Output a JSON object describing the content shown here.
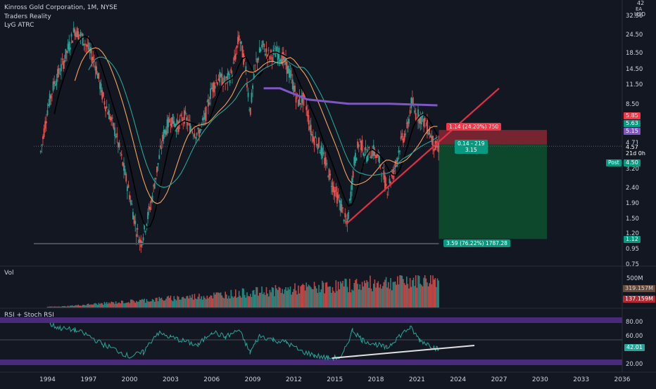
{
  "header": {
    "title": "Kinross Gold Corporation, 1M, NYSE",
    "line2": "Traders Reality",
    "line3": "LyG ATRC"
  },
  "currency": {
    "top": "42",
    "line1": "ЕА",
    "line2": "USD"
  },
  "price_axis": {
    "ticks": [
      {
        "label": "32.50",
        "value": 32.5
      },
      {
        "label": "24.50",
        "value": 24.5
      },
      {
        "label": "18.50",
        "value": 18.5
      },
      {
        "label": "14.50",
        "value": 14.5
      },
      {
        "label": "11.50",
        "value": 11.5
      },
      {
        "label": "8.50",
        "value": 8.5
      },
      {
        "label": "4.71",
        "value": 4.71
      },
      {
        "label": "3.20",
        "value": 3.2
      },
      {
        "label": "2.40",
        "value": 2.4
      },
      {
        "label": "1.90",
        "value": 1.9
      },
      {
        "label": "1.50",
        "value": 1.5
      },
      {
        "label": "1.20",
        "value": 1.2
      },
      {
        "label": "0.95",
        "value": 0.95
      },
      {
        "label": "0.75",
        "value": 0.75
      }
    ],
    "badges": [
      {
        "label": "5.85",
        "color": "#f23645"
      },
      {
        "label": "5.63",
        "color": "#089981"
      },
      {
        "label": "5.15",
        "color": "#7e57c2"
      },
      {
        "label": "4.57",
        "color": "#131722",
        "sub": "21d 0h"
      },
      {
        "label": "4.50",
        "color": "#089981"
      },
      {
        "label": "1.12",
        "color": "#089981"
      }
    ],
    "post_label": "Post"
  },
  "trade": {
    "target_label": "1.14 (24.20%) 750",
    "entry_label_1": "0.14 - 219",
    "entry_label_2": "3.15",
    "stop_label": "3.59 (76.22%) 1787.28"
  },
  "volume_panel": {
    "title": "Vol",
    "axis": "500M",
    "badge1": "319.157M",
    "badge2": "137.159M"
  },
  "rsi_panel": {
    "title": "RSI + Stoch RSI",
    "ticks": [
      {
        "label": "80.00",
        "value": 80
      },
      {
        "label": "60.00",
        "value": 60
      },
      {
        "label": "20.00",
        "value": 20
      }
    ],
    "badge": "42.01"
  },
  "x_axis": {
    "ticks": [
      "1994",
      "1997",
      "2000",
      "2003",
      "2006",
      "2009",
      "2012",
      "2015",
      "2018",
      "2021",
      "2024",
      "2027",
      "2030",
      "2033",
      "2036"
    ]
  },
  "chart_data": {
    "type": "line",
    "title": "Kinross Gold Corporation, 1M, NYSE",
    "x_start": 1993,
    "x_end": 2036,
    "y_scale": "log",
    "ylim": [
      0.75,
      42
    ],
    "price_series": [
      {
        "x": 1993.5,
        "y": 4.2
      },
      {
        "x": 1994.0,
        "y": 8.0
      },
      {
        "x": 1994.5,
        "y": 12.0
      },
      {
        "x": 1995.0,
        "y": 15.0
      },
      {
        "x": 1995.5,
        "y": 20.0
      },
      {
        "x": 1996.0,
        "y": 27.0
      },
      {
        "x": 1996.5,
        "y": 24.0
      },
      {
        "x": 1997.0,
        "y": 20.0
      },
      {
        "x": 1997.5,
        "y": 16.0
      },
      {
        "x": 1998.0,
        "y": 10.0
      },
      {
        "x": 1998.5,
        "y": 7.5
      },
      {
        "x": 1999.0,
        "y": 5.5
      },
      {
        "x": 1999.5,
        "y": 3.5
      },
      {
        "x": 2000.0,
        "y": 2.2
      },
      {
        "x": 2000.5,
        "y": 1.3
      },
      {
        "x": 2000.8,
        "y": 1.05
      },
      {
        "x": 2001.2,
        "y": 1.4
      },
      {
        "x": 2001.6,
        "y": 2.0
      },
      {
        "x": 2002.0,
        "y": 3.2
      },
      {
        "x": 2002.5,
        "y": 5.5
      },
      {
        "x": 2003.0,
        "y": 7.0
      },
      {
        "x": 2003.5,
        "y": 6.2
      },
      {
        "x": 2004.0,
        "y": 7.2
      },
      {
        "x": 2004.5,
        "y": 6.0
      },
      {
        "x": 2005.0,
        "y": 5.5
      },
      {
        "x": 2005.5,
        "y": 7.0
      },
      {
        "x": 2006.0,
        "y": 11.0
      },
      {
        "x": 2006.5,
        "y": 13.0
      },
      {
        "x": 2007.0,
        "y": 12.0
      },
      {
        "x": 2007.5,
        "y": 14.0
      },
      {
        "x": 2008.0,
        "y": 24.0
      },
      {
        "x": 2008.5,
        "y": 15.0
      },
      {
        "x": 2008.8,
        "y": 7.5
      },
      {
        "x": 2009.2,
        "y": 16.0
      },
      {
        "x": 2009.7,
        "y": 21.0
      },
      {
        "x": 2010.2,
        "y": 18.0
      },
      {
        "x": 2010.8,
        "y": 19.0
      },
      {
        "x": 2011.3,
        "y": 17.0
      },
      {
        "x": 2011.8,
        "y": 13.0
      },
      {
        "x": 2012.3,
        "y": 9.0
      },
      {
        "x": 2012.8,
        "y": 9.5
      },
      {
        "x": 2013.3,
        "y": 5.5
      },
      {
        "x": 2013.8,
        "y": 4.8
      },
      {
        "x": 2014.3,
        "y": 3.6
      },
      {
        "x": 2014.8,
        "y": 2.6
      },
      {
        "x": 2015.5,
        "y": 1.8
      },
      {
        "x": 2015.9,
        "y": 1.35
      },
      {
        "x": 2016.4,
        "y": 3.5
      },
      {
        "x": 2016.8,
        "y": 5.0
      },
      {
        "x": 2017.3,
        "y": 4.0
      },
      {
        "x": 2017.8,
        "y": 4.3
      },
      {
        "x": 2018.3,
        "y": 3.6
      },
      {
        "x": 2018.8,
        "y": 2.4
      },
      {
        "x": 2019.3,
        "y": 3.1
      },
      {
        "x": 2019.8,
        "y": 4.8
      },
      {
        "x": 2020.3,
        "y": 6.0
      },
      {
        "x": 2020.6,
        "y": 9.0
      },
      {
        "x": 2020.9,
        "y": 7.5
      },
      {
        "x": 2021.4,
        "y": 7.0
      },
      {
        "x": 2021.9,
        "y": 5.8
      },
      {
        "x": 2022.3,
        "y": 4.5
      },
      {
        "x": 2022.6,
        "y": 4.5
      }
    ],
    "purple_line": [
      {
        "x": 2009.8,
        "y": 11.0
      },
      {
        "x": 2011.0,
        "y": 11.0
      },
      {
        "x": 2013.0,
        "y": 9.3
      },
      {
        "x": 2016.0,
        "y": 8.7
      },
      {
        "x": 2019.0,
        "y": 8.7
      },
      {
        "x": 2022.5,
        "y": 8.5
      }
    ],
    "trend_line": {
      "x1": 2015.8,
      "y1": 1.4,
      "x2": 2027.0,
      "y2": 11.0
    },
    "position": {
      "x1": 2022.6,
      "x2": 2030.5,
      "entry": 4.71,
      "target": 5.85,
      "stop": 1.12
    },
    "volume": {
      "x_start": 1994.0,
      "x_end": 2022.6,
      "peak": 500
    },
    "rsi": {
      "ylim": [
        10,
        100
      ],
      "band_upper": [
        80,
        88
      ],
      "band_lower": [
        20,
        28
      ],
      "mid": 56,
      "values": [
        {
          "x": 1994.2,
          "y": 78
        },
        {
          "x": 1995.0,
          "y": 72
        },
        {
          "x": 1996.0,
          "y": 70
        },
        {
          "x": 1997.0,
          "y": 62
        },
        {
          "x": 1998.0,
          "y": 50
        },
        {
          "x": 1999.0,
          "y": 42
        },
        {
          "x": 2000.0,
          "y": 32
        },
        {
          "x": 2001.0,
          "y": 38
        },
        {
          "x": 2002.0,
          "y": 66
        },
        {
          "x": 2003.0,
          "y": 60
        },
        {
          "x": 2004.0,
          "y": 54
        },
        {
          "x": 2005.0,
          "y": 48
        },
        {
          "x": 2006.0,
          "y": 68
        },
        {
          "x": 2007.0,
          "y": 60
        },
        {
          "x": 2008.0,
          "y": 70
        },
        {
          "x": 2008.8,
          "y": 38
        },
        {
          "x": 2009.5,
          "y": 62
        },
        {
          "x": 2010.5,
          "y": 56
        },
        {
          "x": 2011.5,
          "y": 52
        },
        {
          "x": 2012.5,
          "y": 40
        },
        {
          "x": 2013.5,
          "y": 34
        },
        {
          "x": 2014.5,
          "y": 30
        },
        {
          "x": 2015.5,
          "y": 31
        },
        {
          "x": 2016.3,
          "y": 70
        },
        {
          "x": 2017.0,
          "y": 56
        },
        {
          "x": 2018.0,
          "y": 50
        },
        {
          "x": 2018.8,
          "y": 44
        },
        {
          "x": 2019.5,
          "y": 58
        },
        {
          "x": 2020.5,
          "y": 74
        },
        {
          "x": 2021.2,
          "y": 56
        },
        {
          "x": 2022.0,
          "y": 48
        },
        {
          "x": 2022.6,
          "y": 42
        }
      ],
      "trend_line": {
        "x1": 2014.8,
        "y1": 30,
        "x2": 2025.2,
        "y2": 48
      }
    }
  }
}
